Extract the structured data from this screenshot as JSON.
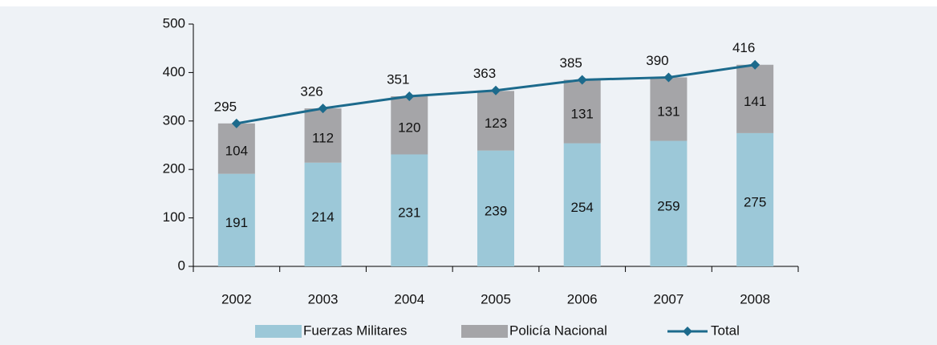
{
  "chart_data": {
    "type": "bar",
    "stacked": true,
    "categories": [
      "2002",
      "2003",
      "2004",
      "2005",
      "2006",
      "2007",
      "2008"
    ],
    "series": [
      {
        "name": "Fuerzas Militares",
        "color": "#9cc8d8",
        "values": [
          191,
          214,
          231,
          239,
          254,
          259,
          275
        ]
      },
      {
        "name": "Policía Nacional",
        "color": "#a5a5a8",
        "values": [
          104,
          112,
          120,
          123,
          131,
          131,
          141
        ]
      },
      {
        "name": "Total",
        "type": "line",
        "color": "#1c6a8c",
        "values": [
          295,
          326,
          351,
          363,
          385,
          390,
          416
        ]
      }
    ],
    "ylim": [
      0,
      500
    ],
    "yticks": [
      0,
      100,
      200,
      300,
      400,
      500
    ],
    "legend": "bottom"
  }
}
